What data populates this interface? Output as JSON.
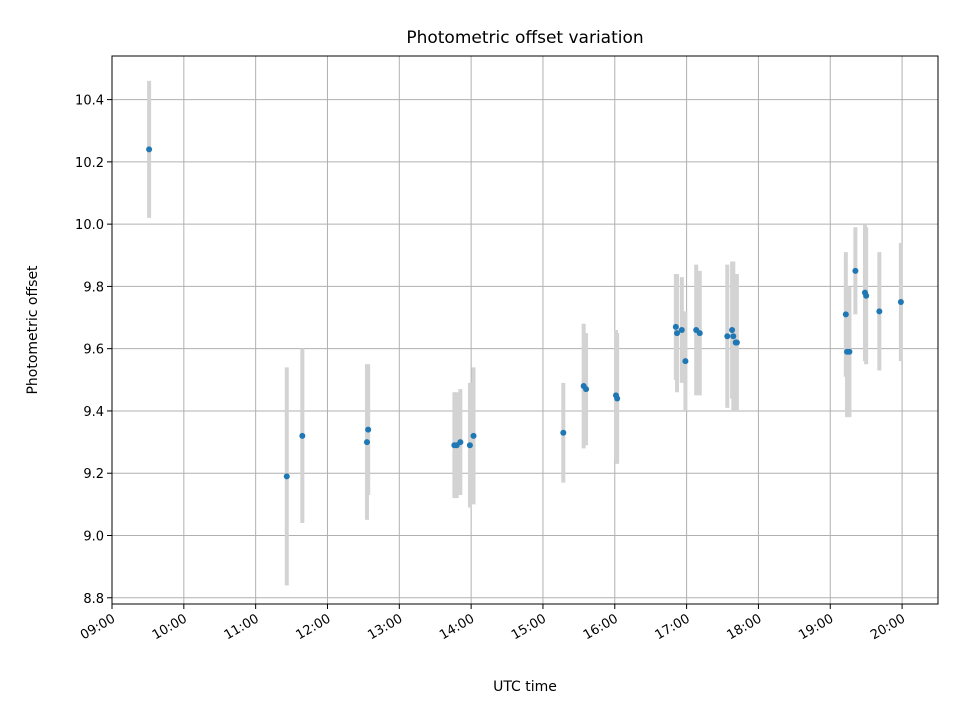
{
  "chart_data": {
    "type": "scatter",
    "title": "Photometric offset variation",
    "xlabel": "UTC time",
    "ylabel": "Photometric offset",
    "xlim": [
      "09:00",
      "20:30"
    ],
    "ylim": [
      8.78,
      10.54
    ],
    "x_ticks": [
      "09:00",
      "10:00",
      "11:00",
      "12:00",
      "13:00",
      "14:00",
      "15:00",
      "16:00",
      "17:00",
      "18:00",
      "19:00",
      "20:00"
    ],
    "y_ticks": [
      "8.8",
      "9.0",
      "9.2",
      "9.4",
      "9.6",
      "9.8",
      "10.0",
      "10.2",
      "10.4"
    ],
    "grid": true,
    "point_color": "#1f77b4",
    "errorbar_color": "#d3d3d3",
    "series": [
      {
        "points": [
          {
            "x": "09:31",
            "y": 10.24,
            "err": 0.22
          },
          {
            "x": "11:26",
            "y": 9.19,
            "err": 0.35
          },
          {
            "x": "11:39",
            "y": 9.32,
            "err": 0.28
          },
          {
            "x": "12:33",
            "y": 9.3,
            "err": 0.25
          },
          {
            "x": "12:34",
            "y": 9.34,
            "err": 0.21
          },
          {
            "x": "13:46",
            "y": 9.29,
            "err": 0.17
          },
          {
            "x": "13:48",
            "y": 9.29,
            "err": 0.17
          },
          {
            "x": "13:51",
            "y": 9.3,
            "err": 0.17
          },
          {
            "x": "13:59",
            "y": 9.29,
            "err": 0.2
          },
          {
            "x": "14:02",
            "y": 9.32,
            "err": 0.22
          },
          {
            "x": "15:17",
            "y": 9.33,
            "err": 0.16
          },
          {
            "x": "15:34",
            "y": 9.48,
            "err": 0.2
          },
          {
            "x": "15:36",
            "y": 9.47,
            "err": 0.18
          },
          {
            "x": "16:01",
            "y": 9.45,
            "err": 0.21
          },
          {
            "x": "16:02",
            "y": 9.44,
            "err": 0.21
          },
          {
            "x": "16:51",
            "y": 9.67,
            "err": 0.17
          },
          {
            "x": "16:52",
            "y": 9.65,
            "err": 0.19
          },
          {
            "x": "16:56",
            "y": 9.66,
            "err": 0.17
          },
          {
            "x": "16:59",
            "y": 9.56,
            "err": 0.16
          },
          {
            "x": "17:08",
            "y": 9.66,
            "err": 0.21
          },
          {
            "x": "17:11",
            "y": 9.65,
            "err": 0.2
          },
          {
            "x": "17:34",
            "y": 9.64,
            "err": 0.23
          },
          {
            "x": "17:38",
            "y": 9.66,
            "err": 0.22
          },
          {
            "x": "17:39",
            "y": 9.64,
            "err": 0.24
          },
          {
            "x": "17:41",
            "y": 9.62,
            "err": 0.22
          },
          {
            "x": "17:42",
            "y": 9.62,
            "err": 0.22
          },
          {
            "x": "19:13",
            "y": 9.71,
            "err": 0.2
          },
          {
            "x": "19:14",
            "y": 9.59,
            "err": 0.21
          },
          {
            "x": "19:16",
            "y": 9.59,
            "err": 0.21
          },
          {
            "x": "19:21",
            "y": 9.85,
            "err": 0.14
          },
          {
            "x": "19:29",
            "y": 9.78,
            "err": 0.22
          },
          {
            "x": "19:30",
            "y": 9.77,
            "err": 0.22
          },
          {
            "x": "19:41",
            "y": 9.72,
            "err": 0.19
          },
          {
            "x": "19:59",
            "y": 9.75,
            "err": 0.19
          }
        ]
      }
    ]
  }
}
